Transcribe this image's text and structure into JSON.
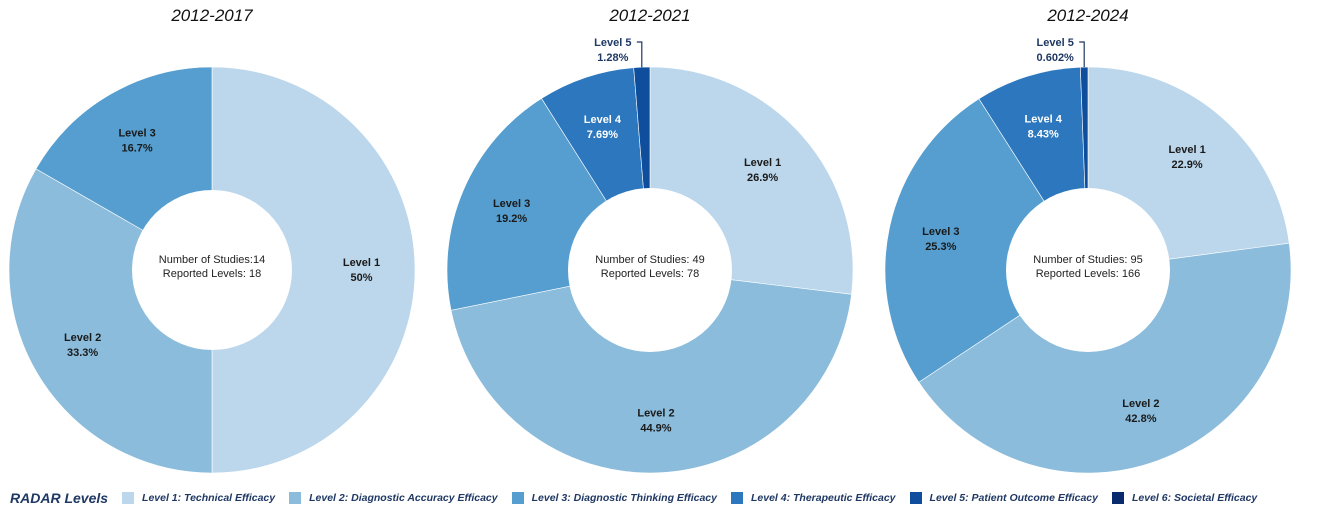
{
  "legend": {
    "title": "RADAR Levels",
    "items": [
      {
        "label": "Level 1: Technical Efficacy",
        "color": "#bcd7ec"
      },
      {
        "label": "Level 2: Diagnostic Accuracy Efficacy",
        "color": "#8bbcdc"
      },
      {
        "label": "Level 3: Diagnostic Thinking Efficacy",
        "color": "#559ecf"
      },
      {
        "label": "Level 4: Therapeutic Efficacy",
        "color": "#2c77bd"
      },
      {
        "label": "Level 5: Patient Outcome Efficacy",
        "color": "#0e4e9c"
      },
      {
        "label": "Level 6: Societal Efficacy",
        "color": "#0a2a6e"
      }
    ]
  },
  "chart_data": [
    {
      "type": "pie",
      "title": "2012-2017",
      "center_text": [
        "Number of Studies:14",
        "Reported Levels: 18"
      ],
      "slices": [
        {
          "name": "Level 1",
          "value_label": "50%",
          "value": 50
        },
        {
          "name": "Level 2",
          "value_label": "33.3%",
          "value": 33.3
        },
        {
          "name": "Level 3",
          "value_label": "16.7%",
          "value": 16.7
        }
      ]
    },
    {
      "type": "pie",
      "title": "2012-2021",
      "center_text": [
        "Number of Studies: 49",
        "Reported Levels: 78"
      ],
      "slices": [
        {
          "name": "Level 1",
          "value_label": "26.9%",
          "value": 26.9
        },
        {
          "name": "Level 2",
          "value_label": "44.9%",
          "value": 44.9
        },
        {
          "name": "Level 3",
          "value_label": "19.2%",
          "value": 19.2
        },
        {
          "name": "Level 4",
          "value_label": "7.69%",
          "value": 7.69
        },
        {
          "name": "Level 5",
          "value_label": "1.28%",
          "value": 1.28
        }
      ]
    },
    {
      "type": "pie",
      "title": "2012-2024",
      "center_text": [
        "Number of Studies: 95",
        "Reported Levels: 166"
      ],
      "slices": [
        {
          "name": "Level 1",
          "value_label": "22.9%",
          "value": 22.9
        },
        {
          "name": "Level 2",
          "value_label": "42.8%",
          "value": 42.8
        },
        {
          "name": "Level 3",
          "value_label": "25.3%",
          "value": 25.3
        },
        {
          "name": "Level 4",
          "value_label": "8.43%",
          "value": 8.43
        },
        {
          "name": "Level 5",
          "value_label": "0.602%",
          "value": 0.602
        }
      ]
    }
  ]
}
